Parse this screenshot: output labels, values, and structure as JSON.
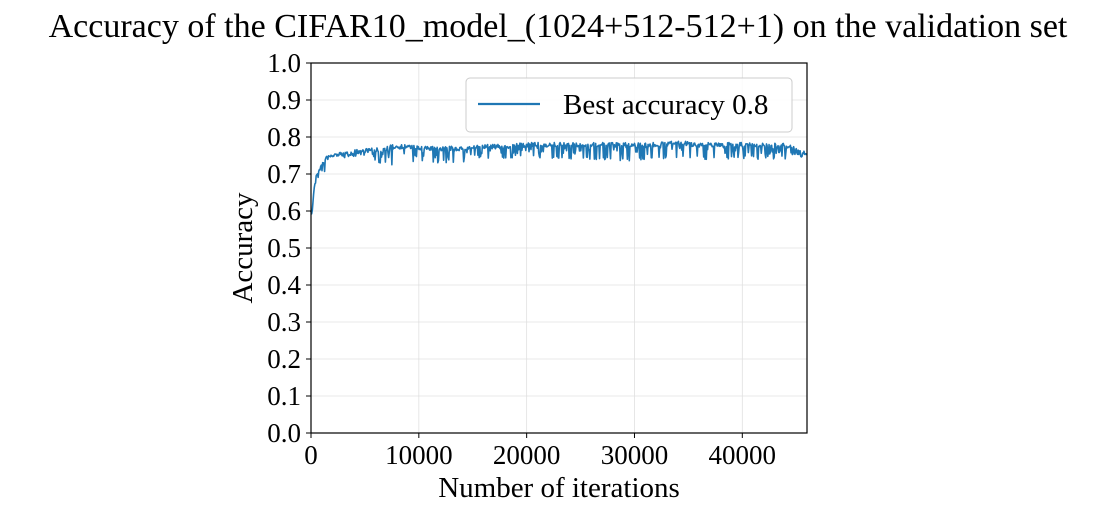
{
  "chart_data": {
    "type": "line",
    "title": "Accuracy of the CIFAR10_model_(1024+512-512+1) on the validation set",
    "xlabel": "Number of iterations",
    "ylabel": "Accuracy",
    "xlim": [
      0,
      46000
    ],
    "ylim": [
      0.0,
      1.0
    ],
    "xticks": [
      0,
      10000,
      20000,
      30000,
      40000
    ],
    "yticks": [
      0.0,
      0.1,
      0.2,
      0.3,
      0.4,
      0.5,
      0.6,
      0.7,
      0.8,
      0.9,
      1.0
    ],
    "grid": true,
    "legend": {
      "position": "top-right",
      "entries": [
        "Best accuracy 0.8"
      ]
    },
    "series": [
      {
        "name": "Best accuracy 0.8",
        "color": "#1f77b4",
        "x": [
          0,
          100,
          200,
          300,
          400,
          500,
          600,
          800,
          1000,
          1200,
          1500,
          2000,
          2500,
          3000,
          4000,
          5000,
          6000,
          7000,
          7500,
          8000,
          9000,
          10000,
          12000,
          14000,
          16000,
          18000,
          20000,
          22000,
          24000,
          26000,
          28000,
          30000,
          32000,
          34000,
          36000,
          38000,
          40000,
          42000,
          44000,
          46000
        ],
        "y": [
          0.59,
          0.6,
          0.64,
          0.67,
          0.68,
          0.7,
          0.71,
          0.72,
          0.73,
          0.74,
          0.75,
          0.755,
          0.76,
          0.76,
          0.765,
          0.77,
          0.77,
          0.775,
          0.78,
          0.78,
          0.78,
          0.775,
          0.775,
          0.775,
          0.78,
          0.78,
          0.785,
          0.785,
          0.785,
          0.785,
          0.785,
          0.785,
          0.785,
          0.79,
          0.785,
          0.785,
          0.785,
          0.785,
          0.785,
          0.76
        ],
        "band_low": [
          0.59,
          0.59,
          0.6,
          0.62,
          0.64,
          0.65,
          0.66,
          0.67,
          0.69,
          0.7,
          0.72,
          0.74,
          0.745,
          0.745,
          0.74,
          0.735,
          0.73,
          0.73,
          0.725,
          0.74,
          0.735,
          0.73,
          0.73,
          0.73,
          0.74,
          0.74,
          0.745,
          0.74,
          0.74,
          0.74,
          0.735,
          0.735,
          0.74,
          0.74,
          0.74,
          0.735,
          0.74,
          0.74,
          0.74,
          0.74
        ]
      }
    ]
  }
}
